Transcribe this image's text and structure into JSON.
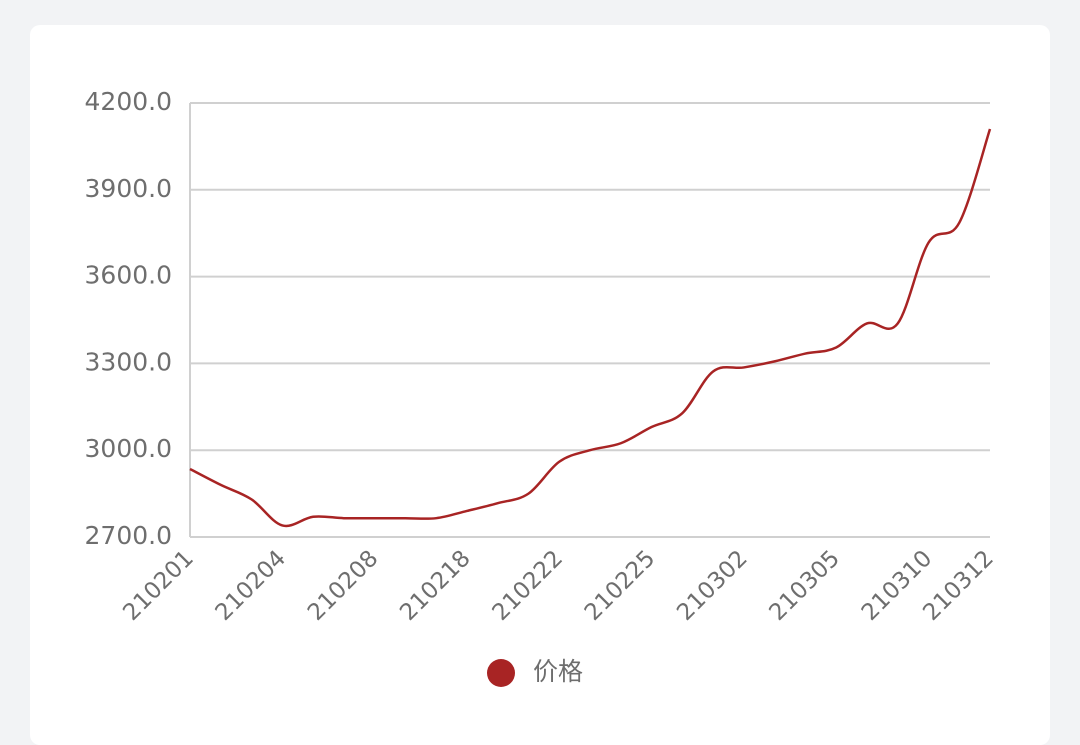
{
  "chart_data": {
    "type": "line",
    "categories": [
      "210201",
      null,
      null,
      "210204",
      null,
      null,
      "210208",
      null,
      null,
      "210218",
      null,
      null,
      "210222",
      null,
      null,
      "210225",
      null,
      null,
      "210302",
      null,
      null,
      "210305",
      null,
      null,
      "210310",
      null,
      "210312"
    ],
    "series": [
      {
        "name": "价格",
        "color": "#a82424",
        "values": [
          2935,
          2880,
          2830,
          2740,
          2770,
          2765,
          2765,
          2765,
          2765,
          2790,
          2817,
          2850,
          2960,
          3000,
          3024,
          3080,
          3128,
          3272,
          3286,
          3307,
          3334,
          3355,
          3438,
          3438,
          3717,
          3786,
          4110
        ]
      }
    ],
    "ylim": [
      2700,
      4200
    ],
    "yticks": [
      {
        "value": 2700,
        "label": "2700.0"
      },
      {
        "value": 3000,
        "label": "3000.0"
      },
      {
        "value": 3300,
        "label": "3300.0"
      },
      {
        "value": 3600,
        "label": "3600.0"
      },
      {
        "value": 3900,
        "label": "3900.0"
      },
      {
        "value": 4200,
        "label": "4200.0"
      }
    ],
    "grid": true
  }
}
